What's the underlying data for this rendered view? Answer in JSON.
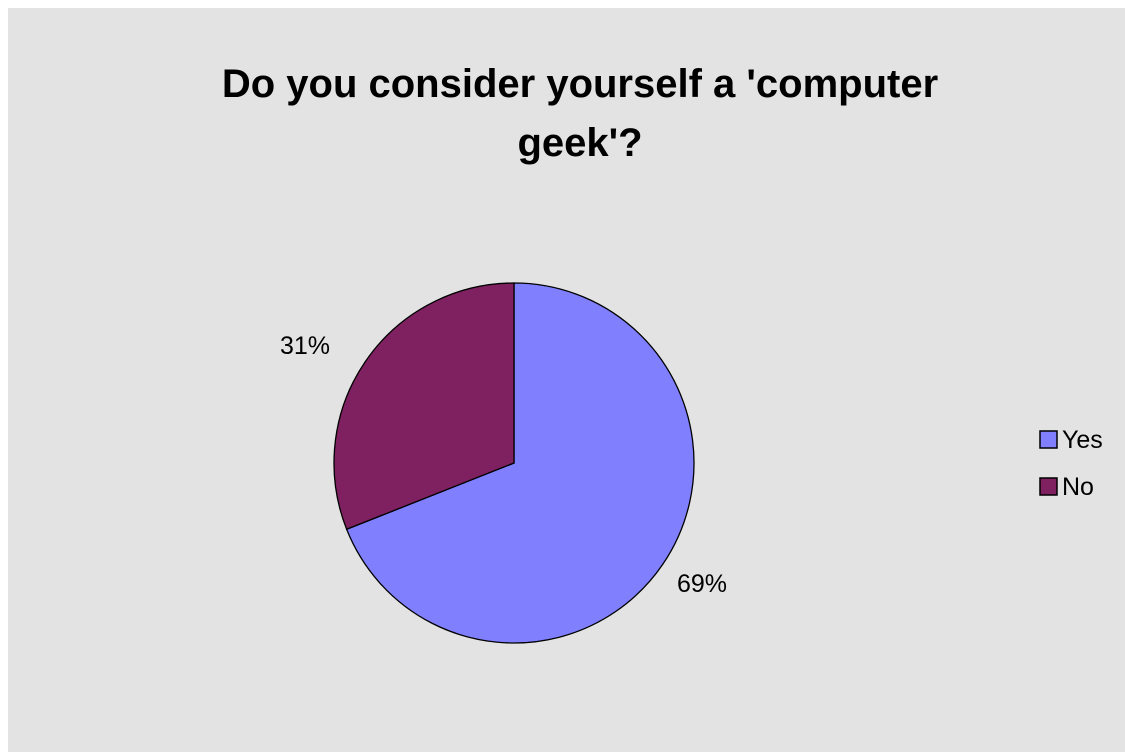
{
  "chart_data": {
    "type": "pie",
    "title": "Do you consider yourself a 'computer geek'?",
    "categories": [
      "Yes",
      "No"
    ],
    "values": [
      69,
      31
    ],
    "data_labels": [
      "69%",
      "31%"
    ],
    "colors": [
      "#8080ff",
      "#7f2060"
    ],
    "background": "#e3e3e3",
    "legend": {
      "placement": "right",
      "entries": [
        "Yes",
        "No"
      ]
    }
  }
}
